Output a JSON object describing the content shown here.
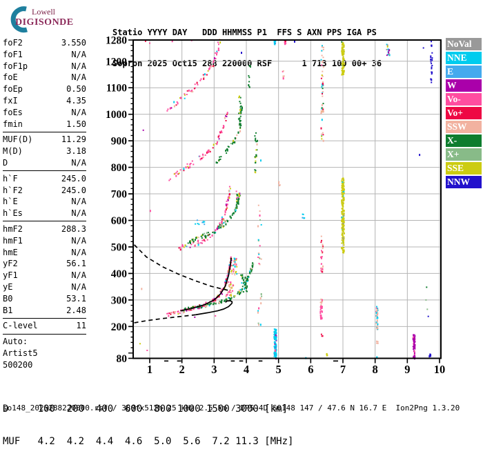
{
  "logo": {
    "line1": "Lowell",
    "line2": "DIGISONDE",
    "arc_color": "#1e7f9e"
  },
  "header": {
    "line1": "Statio YYYY DAY   DDD HHMMSS P1  FFS S AXN PPS IGA PS",
    "line2": "Sopron 2025 Oct15 288 220000 RSF      1 713 100 00+ 36"
  },
  "parameters": {
    "groups": [
      [
        {
          "label": "foF2",
          "value": "3.550"
        },
        {
          "label": "foF1",
          "value": "N/A"
        },
        {
          "label": "foF1p",
          "value": "N/A"
        },
        {
          "label": "foE",
          "value": "N/A"
        },
        {
          "label": "foEp",
          "value": "0.50"
        },
        {
          "label": "fxI",
          "value": "4.35"
        },
        {
          "label": "foEs",
          "value": "N/A"
        },
        {
          "label": "fmin",
          "value": "1.50"
        }
      ],
      [
        {
          "label": "MUF(D)",
          "value": "11.29"
        },
        {
          "label": "M(D)",
          "value": "3.18"
        },
        {
          "label": "D",
          "value": "N/A"
        }
      ],
      [
        {
          "label": "h`F",
          "value": "245.0"
        },
        {
          "label": "h`F2",
          "value": "245.0"
        },
        {
          "label": "h`E",
          "value": "N/A"
        },
        {
          "label": "h`Es",
          "value": "N/A"
        }
      ],
      [
        {
          "label": "hmF2",
          "value": "288.3"
        },
        {
          "label": "hmF1",
          "value": "N/A"
        },
        {
          "label": "hmE",
          "value": "N/A"
        },
        {
          "label": "yF2",
          "value": "56.1"
        },
        {
          "label": "yF1",
          "value": "N/A"
        },
        {
          "label": "yE",
          "value": "N/A"
        },
        {
          "label": "B0",
          "value": "53.1"
        },
        {
          "label": "B1",
          "value": "2.48"
        }
      ],
      [
        {
          "label": "C-level",
          "value": "11"
        }
      ],
      [
        {
          "label": "Auto:",
          "value": ""
        },
        {
          "label": "Artist5",
          "value": ""
        },
        {
          "label": "500200",
          "value": ""
        }
      ]
    ]
  },
  "legend": {
    "items": [
      {
        "label": "NoVal",
        "color": "#999999"
      },
      {
        "label": "NNE",
        "color": "#00ccee"
      },
      {
        "label": "E",
        "color": "#44aaee"
      },
      {
        "label": "W",
        "color": "#aa00aa"
      },
      {
        "label": "Vo-",
        "color": "#ff4da0"
      },
      {
        "label": "Vo+",
        "color": "#ee0844"
      },
      {
        "label": "SSW",
        "color": "#f2b2a0"
      },
      {
        "label": "X-",
        "color": "#0e7d2e"
      },
      {
        "label": "X+",
        "color": "#88bb88"
      },
      {
        "label": "SSE",
        "color": "#cccc11"
      },
      {
        "label": "NNW",
        "color": "#2211cc"
      }
    ]
  },
  "muf_table": {
    "line1": "D     100  200  400  600  800 1000 1500 3000 [km]",
    "line2": "MUF   4.2  4.2  4.4  4.6  5.0  5.6  7.2 11.3 [MHz]"
  },
  "status_line": "so148_2025288220000.rsf / 380fx512h 25 kHz 2.5 km / DPS-4D SO148 147 / 47.6 N 16.7 E  Ion2Png 1.3.20",
  "chart_data": {
    "type": "scatter",
    "x_unit": "MHz",
    "y_unit": "km",
    "x_ticks": [
      1,
      2,
      3,
      4,
      5,
      6,
      7,
      8,
      9,
      10
    ],
    "y_ticks": [
      80,
      200,
      300,
      400,
      500,
      600,
      700,
      800,
      900,
      1000,
      1100,
      1200,
      1280
    ],
    "x_range": [
      0.5,
      10.05
    ],
    "y_range": [
      80,
      1280
    ],
    "grid": true,
    "grid_color": "#b4b4b4",
    "traces": [
      {
        "name": "F-1hop-O",
        "colors": {
          "Vo-": 0.52,
          "Vo+": 0.13,
          "SSW": 0.1,
          "SSE": 0.08,
          "NNE": 0.07,
          "W": 0.06,
          "E": 0.04
        },
        "spread": 5,
        "density": 0.85,
        "points": [
          [
            1.5,
            246
          ],
          [
            1.8,
            251
          ],
          [
            2.1,
            261
          ],
          [
            2.5,
            273
          ],
          [
            2.9,
            293
          ],
          [
            3.1,
            311
          ],
          [
            3.25,
            336
          ],
          [
            3.38,
            372
          ],
          [
            3.47,
            416
          ],
          [
            3.53,
            460
          ]
        ]
      },
      {
        "name": "F-1hop-X",
        "colors": {
          "X-": 0.66,
          "SSE": 0.12,
          "X+": 0.1,
          "SSW": 0.07,
          "NNE": 0.05
        },
        "spread": 4,
        "density": 0.8,
        "points": [
          [
            2.0,
            263
          ],
          [
            2.4,
            271
          ],
          [
            2.8,
            281
          ],
          [
            3.1,
            291
          ],
          [
            3.35,
            300
          ],
          [
            3.6,
            311
          ],
          [
            3.78,
            328
          ],
          [
            3.95,
            357
          ],
          [
            4.1,
            398
          ],
          [
            4.22,
            443
          ]
        ]
      },
      {
        "name": "F-2hop-O",
        "colors": {
          "Vo-": 0.52,
          "Vo+": 0.13,
          "SSW": 0.1,
          "SSE": 0.08,
          "NNE": 0.07,
          "W": 0.06,
          "E": 0.04
        },
        "spread": 7,
        "density": 0.6,
        "points": [
          [
            1.88,
            496
          ],
          [
            2.2,
            505
          ],
          [
            2.6,
            521
          ],
          [
            2.95,
            548
          ],
          [
            3.2,
            585
          ],
          [
            3.35,
            632
          ],
          [
            3.45,
            688
          ],
          [
            3.5,
            730
          ]
        ]
      },
      {
        "name": "F-2hop-X",
        "colors": {
          "X-": 0.66,
          "SSE": 0.12,
          "X+": 0.1,
          "SSW": 0.07,
          "NNE": 0.05
        },
        "spread": 6,
        "density": 0.7,
        "points": [
          [
            2.15,
            517
          ],
          [
            2.6,
            536
          ],
          [
            3.0,
            559
          ],
          [
            3.3,
            586
          ],
          [
            3.55,
            616
          ],
          [
            3.7,
            652
          ],
          [
            3.8,
            700
          ]
        ]
      },
      {
        "name": "F-3hop-O",
        "colors": {
          "Vo-": 0.55,
          "Vo+": 0.15,
          "SSW": 0.1,
          "SSE": 0.1,
          "W": 0.05,
          "NNE": 0.05
        },
        "spread": 7,
        "density": 0.5,
        "points": [
          [
            1.6,
            756
          ],
          [
            2.0,
            790
          ],
          [
            2.4,
            822
          ],
          [
            2.8,
            856
          ],
          [
            3.05,
            892
          ],
          [
            3.2,
            928
          ],
          [
            3.32,
            968
          ],
          [
            3.4,
            1005
          ]
        ]
      },
      {
        "name": "F-3hop-X",
        "colors": {
          "X-": 0.7,
          "SSE": 0.12,
          "X+": 0.1,
          "SSW": 0.08
        },
        "spread": 6,
        "density": 0.5,
        "points": [
          [
            3.05,
            812
          ],
          [
            3.3,
            850
          ],
          [
            3.5,
            882
          ],
          [
            3.65,
            908
          ],
          [
            3.78,
            935
          ],
          [
            3.83,
            980
          ],
          [
            3.85,
            1035
          ]
        ]
      },
      {
        "name": "F-4hop-O",
        "colors": {
          "Vo-": 0.55,
          "Vo+": 0.15,
          "SSW": 0.1,
          "SSE": 0.1,
          "W": 0.05,
          "NNE": 0.05
        },
        "spread": 7,
        "density": 0.45,
        "points": [
          [
            1.52,
            1012
          ],
          [
            1.9,
            1052
          ],
          [
            2.3,
            1092
          ],
          [
            2.7,
            1142
          ],
          [
            2.95,
            1188
          ],
          [
            3.1,
            1238
          ],
          [
            3.17,
            1280
          ]
        ]
      }
    ],
    "columns": [
      {
        "f": 4.9,
        "fw": 0.07,
        "h1": 80,
        "h2": 190,
        "n": 110,
        "colors": {
          "NNE": 0.85,
          "W": 0.1,
          "Vo-": 0.05
        }
      },
      {
        "f": 4.9,
        "fw": 0.06,
        "h1": 1262,
        "h2": 1280,
        "n": 10,
        "colors": {
          "NNE": 0.5,
          "W": 0.3,
          "NNW": 0.2
        }
      },
      {
        "f": 5.2,
        "fw": 0.05,
        "h1": 1255,
        "h2": 1280,
        "n": 9,
        "colors": {
          "Vo-": 0.7,
          "Vo+": 0.3
        }
      },
      {
        "f": 5.15,
        "fw": 0.05,
        "h1": 1130,
        "h2": 1165,
        "n": 7,
        "colors": {
          "Vo-": 0.6,
          "SSW": 0.4
        }
      },
      {
        "f": 6.36,
        "fw": 0.08,
        "h1": 895,
        "h2": 1260,
        "n": 55,
        "colors": {
          "SSW": 0.5,
          "NNE": 0.15,
          "SSE": 0.12,
          "Vo+": 0.1,
          "X-": 0.08,
          "Vo-": 0.05
        }
      },
      {
        "f": 6.35,
        "fw": 0.07,
        "h1": 395,
        "h2": 565,
        "n": 26,
        "colors": {
          "Vo+": 0.5,
          "Vo-": 0.3,
          "SSW": 0.2
        }
      },
      {
        "f": 6.33,
        "fw": 0.06,
        "h1": 228,
        "h2": 312,
        "n": 30,
        "colors": {
          "Vo-": 0.75,
          "SSW": 0.25
        }
      },
      {
        "f": 6.35,
        "fw": 0.04,
        "h1": 163,
        "h2": 175,
        "n": 4,
        "colors": {
          "Vo+": 1
        }
      },
      {
        "f": 6.5,
        "fw": 0.04,
        "h1": 86,
        "h2": 98,
        "n": 5,
        "colors": {
          "SSE": 1
        }
      },
      {
        "f": 7.0,
        "fw": 0.08,
        "h1": 478,
        "h2": 762,
        "n": 170,
        "colors": {
          "SSE": 0.92,
          "NoVal": 0.04,
          "NNE": 0.04
        }
      },
      {
        "f": 7.0,
        "fw": 0.08,
        "h1": 1148,
        "h2": 1280,
        "n": 85,
        "colors": {
          "SSE": 0.95,
          "X-": 0.05
        }
      },
      {
        "f": 8.06,
        "fw": 0.06,
        "h1": 188,
        "h2": 275,
        "n": 40,
        "colors": {
          "NNE": 0.45,
          "SSW": 0.45,
          "Vo-": 0.1
        }
      },
      {
        "f": 8.07,
        "fw": 0.04,
        "h1": 136,
        "h2": 146,
        "n": 4,
        "colors": {
          "SSW": 1
        }
      },
      {
        "f": 8.05,
        "fw": 0.04,
        "h1": 80,
        "h2": 86,
        "n": 3,
        "colors": {
          "NNE": 1
        }
      },
      {
        "f": 8.4,
        "fw": 0.1,
        "h1": 1222,
        "h2": 1280,
        "n": 14,
        "colors": {
          "SSE": 0.3,
          "NNE": 0.3,
          "W": 0.2,
          "NoVal": 0.2
        }
      },
      {
        "f": 9.21,
        "fw": 0.06,
        "h1": 80,
        "h2": 170,
        "n": 60,
        "colors": {
          "W": 0.9,
          "Vo-": 0.1
        }
      },
      {
        "f": 9.75,
        "fw": 0.05,
        "h1": 1120,
        "h2": 1280,
        "n": 22,
        "colors": {
          "NNW": 1
        }
      },
      {
        "f": 9.7,
        "fw": 0.05,
        "h1": 80,
        "h2": 96,
        "n": 6,
        "colors": {
          "NNW": 1
        }
      },
      {
        "f": 4.42,
        "fw": 0.12,
        "h1": 200,
        "h2": 660,
        "n": 28,
        "colors": {
          "SSW": 0.5,
          "Vo-": 0.2,
          "X+": 0.15,
          "NNE": 0.15
        }
      },
      {
        "f": 4.3,
        "fw": 0.08,
        "h1": 750,
        "h2": 935,
        "n": 22,
        "colors": {
          "X-": 0.7,
          "SSE": 0.15,
          "SSW": 0.15
        }
      },
      {
        "f": 4.1,
        "fw": 0.06,
        "h1": 1100,
        "h2": 1200,
        "n": 10,
        "colors": {
          "X-": 1
        }
      },
      {
        "f": 3.8,
        "fw": 0.08,
        "h1": 960,
        "h2": 1070,
        "n": 18,
        "colors": {
          "X-": 0.8,
          "SSE": 0.2
        }
      },
      {
        "f": 5.02,
        "fw": 0.05,
        "h1": 728,
        "h2": 750,
        "n": 5,
        "colors": {
          "SSW": 1
        }
      },
      {
        "f": 5.78,
        "fw": 0.08,
        "h1": 606,
        "h2": 626,
        "n": 6,
        "colors": {
          "NNE": 0.6,
          "E": 0.4
        }
      },
      {
        "f": 2.5,
        "fw": 0.4,
        "h1": 583,
        "h2": 605,
        "n": 8,
        "colors": {
          "NNE": 0.6,
          "E": 0.4
        }
      },
      {
        "f": 3.48,
        "fw": 0.25,
        "h1": 315,
        "h2": 368,
        "n": 28,
        "colors": {
          "SSW": 0.45,
          "Vo-": 0.35,
          "SSE": 0.2
        }
      },
      {
        "f": 3.62,
        "fw": 0.18,
        "h1": 395,
        "h2": 465,
        "n": 30,
        "colors": {
          "Vo-": 0.5,
          "SSE": 0.2,
          "SSW": 0.15,
          "NNE": 0.15
        }
      },
      {
        "f": 3.93,
        "fw": 0.2,
        "h1": 330,
        "h2": 395,
        "n": 26,
        "colors": {
          "X-": 0.8,
          "NNE": 0.1,
          "SSE": 0.1
        }
      },
      {
        "f": 3.75,
        "fw": 0.12,
        "h1": 655,
        "h2": 720,
        "n": 20,
        "colors": {
          "X-": 0.6,
          "Vo-": 0.2,
          "SSE": 0.1,
          "W": 0.1
        }
      }
    ],
    "dots": [
      [
        5.85,
        82,
        "NNE"
      ],
      [
        9.5,
        1250,
        "NNW"
      ],
      [
        9.38,
        848,
        "NNW"
      ],
      [
        0.8,
        940,
        "W"
      ],
      [
        0.87,
        1278,
        "Vo+"
      ],
      [
        1.0,
        1268,
        "Vo-"
      ],
      [
        1.7,
        1277,
        "Vo-"
      ],
      [
        2.3,
        1278,
        "Vo-"
      ],
      [
        5.5,
        1275,
        "NNW"
      ],
      [
        3.85,
        1233,
        "NNW"
      ],
      [
        0.7,
        135,
        "SSE"
      ],
      [
        0.92,
        110,
        "Vo-"
      ],
      [
        0.75,
        343,
        "SSW"
      ],
      [
        1.02,
        637,
        "Vo-"
      ],
      [
        3.04,
        240,
        "Vo-"
      ],
      [
        2.4,
        235,
        "W"
      ],
      [
        9.6,
        348,
        "X-"
      ],
      [
        9.58,
        300,
        "X+"
      ],
      [
        9.62,
        265,
        "X+"
      ],
      [
        9.65,
        238,
        "NNW"
      ],
      [
        3.2,
        330,
        "W"
      ],
      [
        3.25,
        322,
        "W"
      ],
      [
        4.03,
        370,
        "NNE"
      ],
      [
        4.45,
        827,
        "NNE"
      ]
    ],
    "black_curves": [
      {
        "name": "scaled-h-trace",
        "style": "solid",
        "points": [
          [
            1.95,
            259
          ],
          [
            2.3,
            268
          ],
          [
            2.7,
            282
          ],
          [
            3.0,
            300
          ],
          [
            3.2,
            323
          ],
          [
            3.35,
            353
          ],
          [
            3.45,
            393
          ],
          [
            3.5,
            430
          ],
          [
            3.53,
            459
          ]
        ]
      },
      {
        "name": "transmission-curve",
        "style": "dashed",
        "points": [
          [
            0.52,
            508
          ],
          [
            0.9,
            462
          ],
          [
            1.4,
            425
          ],
          [
            1.9,
            397
          ],
          [
            2.4,
            373
          ],
          [
            2.9,
            352
          ],
          [
            3.2,
            343
          ],
          [
            3.45,
            336
          ]
        ]
      },
      {
        "name": "profile-start",
        "style": "dashed",
        "points": [
          [
            0.52,
            214
          ],
          [
            0.9,
            222
          ],
          [
            1.4,
            230
          ],
          [
            1.9,
            237
          ],
          [
            2.42,
            244
          ]
        ]
      },
      {
        "name": "true-height-profile",
        "style": "solid",
        "points": [
          [
            2.42,
            244
          ],
          [
            2.8,
            252
          ],
          [
            3.1,
            259
          ],
          [
            3.3,
            266
          ],
          [
            3.45,
            275
          ],
          [
            3.55,
            287
          ],
          [
            3.56,
            293
          ],
          [
            3.5,
            297
          ],
          [
            3.4,
            296
          ],
          [
            3.35,
            291
          ]
        ]
      }
    ],
    "rfi_marks": [
      [
        1.45,
        1.58
      ],
      [
        1.85,
        1.98
      ],
      [
        3.52,
        3.64
      ],
      [
        3.78,
        3.9
      ],
      [
        4.38,
        4.5
      ],
      [
        6.7,
        6.85
      ]
    ]
  }
}
